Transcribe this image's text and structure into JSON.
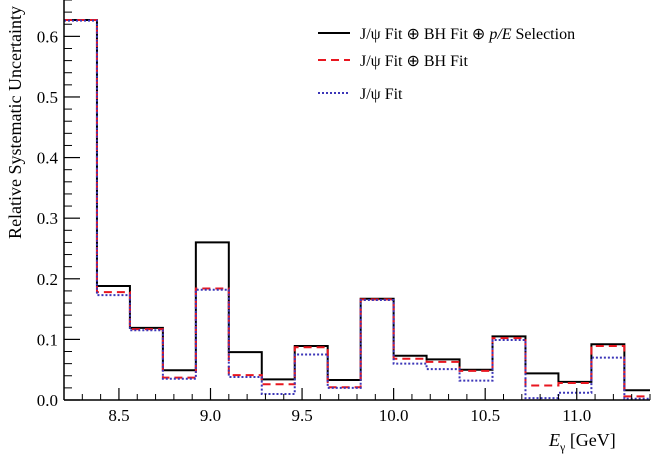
{
  "chart_data": {
    "type": "line",
    "step": true,
    "xlabel": "E",
    "xlabel_sub": "γ",
    "xlabel_unit": " [GeV]",
    "ylabel": "Relative Systematic Uncertainty",
    "xlim": [
      8.2,
      11.4
    ],
    "ylim": [
      0.0,
      0.66
    ],
    "x_ticks": [
      {
        "value": 8.5,
        "label": "8.5"
      },
      {
        "value": 9.0,
        "label": "9.0"
      },
      {
        "value": 9.5,
        "label": "9.5"
      },
      {
        "value": 10.0,
        "label": "10.0"
      },
      {
        "value": 10.5,
        "label": "10.5"
      },
      {
        "value": 11.0,
        "label": "11.0"
      }
    ],
    "y_ticks": [
      {
        "value": 0.0,
        "label": "0.0"
      },
      {
        "value": 0.1,
        "label": "0.1"
      },
      {
        "value": 0.2,
        "label": "0.2"
      },
      {
        "value": 0.3,
        "label": "0.3"
      },
      {
        "value": 0.4,
        "label": "0.4"
      },
      {
        "value": 0.5,
        "label": "0.5"
      },
      {
        "value": 0.6,
        "label": "0.6"
      }
    ],
    "bin_edges": [
      8.2,
      8.38,
      8.56,
      8.74,
      8.92,
      9.1,
      9.28,
      9.46,
      9.64,
      9.82,
      10.0,
      10.18,
      10.36,
      10.54,
      10.72,
      10.9,
      11.08,
      11.26,
      11.4
    ],
    "series": [
      {
        "name": "J/ψ Fit ⊕ BH Fit ⊕ p/E Selection",
        "legend_parts": [
          "J/ψ Fit ⊕ BH Fit ⊕ ",
          "p/E",
          " Selection"
        ],
        "style": "solid",
        "color": "#000000",
        "values": [
          0.627,
          0.188,
          0.119,
          0.049,
          0.26,
          0.079,
          0.034,
          0.089,
          0.033,
          0.167,
          0.073,
          0.067,
          0.05,
          0.105,
          0.044,
          0.03,
          0.092,
          0.016
        ]
      },
      {
        "name": "J/ψ Fit ⊕ BH Fit",
        "legend_parts": [
          "J/ψ Fit ⊕ BH Fit"
        ],
        "style": "dashed",
        "color": "#e8161f",
        "values": [
          0.627,
          0.178,
          0.117,
          0.037,
          0.184,
          0.041,
          0.026,
          0.087,
          0.021,
          0.166,
          0.068,
          0.063,
          0.048,
          0.102,
          0.024,
          0.028,
          0.089,
          0.006
        ]
      },
      {
        "name": "J/ψ Fit",
        "legend_parts": [
          "J/ψ Fit"
        ],
        "style": "dotted",
        "color": "#3c36b8",
        "values": [
          0.626,
          0.173,
          0.115,
          0.035,
          0.182,
          0.038,
          0.01,
          0.075,
          0.02,
          0.165,
          0.06,
          0.051,
          0.032,
          0.099,
          0.003,
          0.012,
          0.07,
          0.002
        ]
      }
    ],
    "legend_position": "top-right",
    "grid": false
  }
}
